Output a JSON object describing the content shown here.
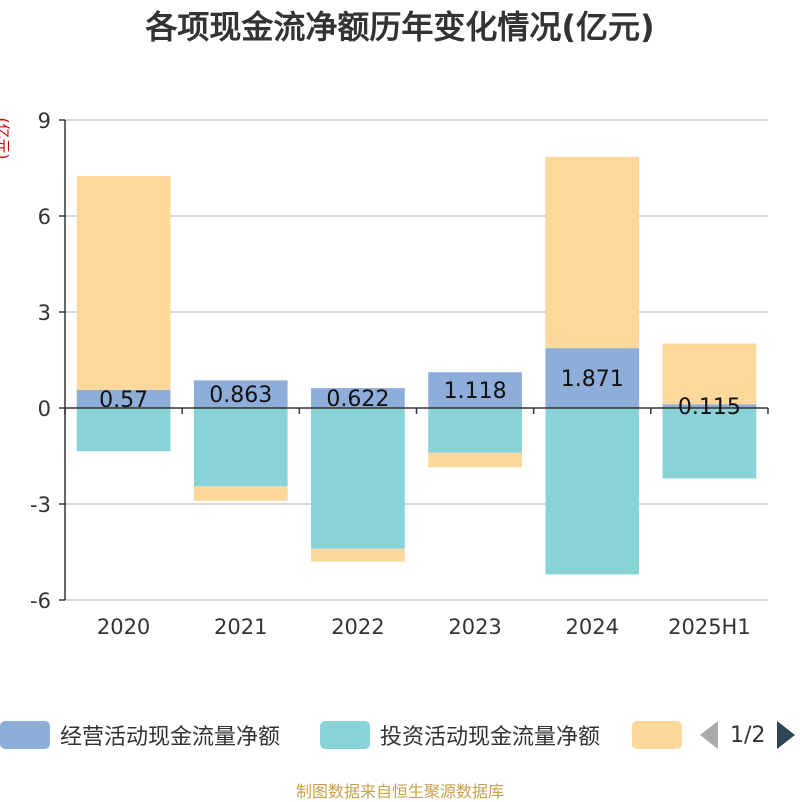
{
  "title": "各项现金流净额历年变化情况(亿元)",
  "unit_label": "(亿元)",
  "source": "制图数据来自恒生聚源数据库",
  "legend": {
    "items": [
      {
        "label": "经营活动现金流量净额",
        "color": "#8eadd9"
      },
      {
        "label": "投资活动现金流量净额",
        "color": "#88d3d8"
      },
      {
        "label": "",
        "color": "#fed89a"
      }
    ],
    "page": "1/2"
  },
  "chart_data": {
    "type": "bar",
    "stacked": true,
    "categories": [
      "2020",
      "2021",
      "2022",
      "2023",
      "2024",
      "2025H1"
    ],
    "ylim": [
      -6,
      9
    ],
    "yticks": [
      -6,
      -3,
      0,
      3,
      6,
      9
    ],
    "grid": true,
    "legend_position": "bottom",
    "series": [
      {
        "name": "经营活动现金流量净额",
        "color": "#8eadd9",
        "values": [
          0.57,
          0.863,
          0.622,
          1.118,
          1.871,
          0.115
        ],
        "labels": [
          "0.57",
          "0.863",
          "0.622",
          "1.118",
          "1.871",
          "0.115"
        ]
      },
      {
        "name": "投资活动现金流量净额",
        "color": "#88d3d8",
        "values": [
          -1.35,
          -2.45,
          -4.4,
          -1.4,
          -5.2,
          -2.2
        ]
      },
      {
        "color": "#fed89a",
        "values": [
          6.68,
          -0.45,
          -0.4,
          -0.45,
          5.98,
          1.9
        ]
      }
    ]
  }
}
